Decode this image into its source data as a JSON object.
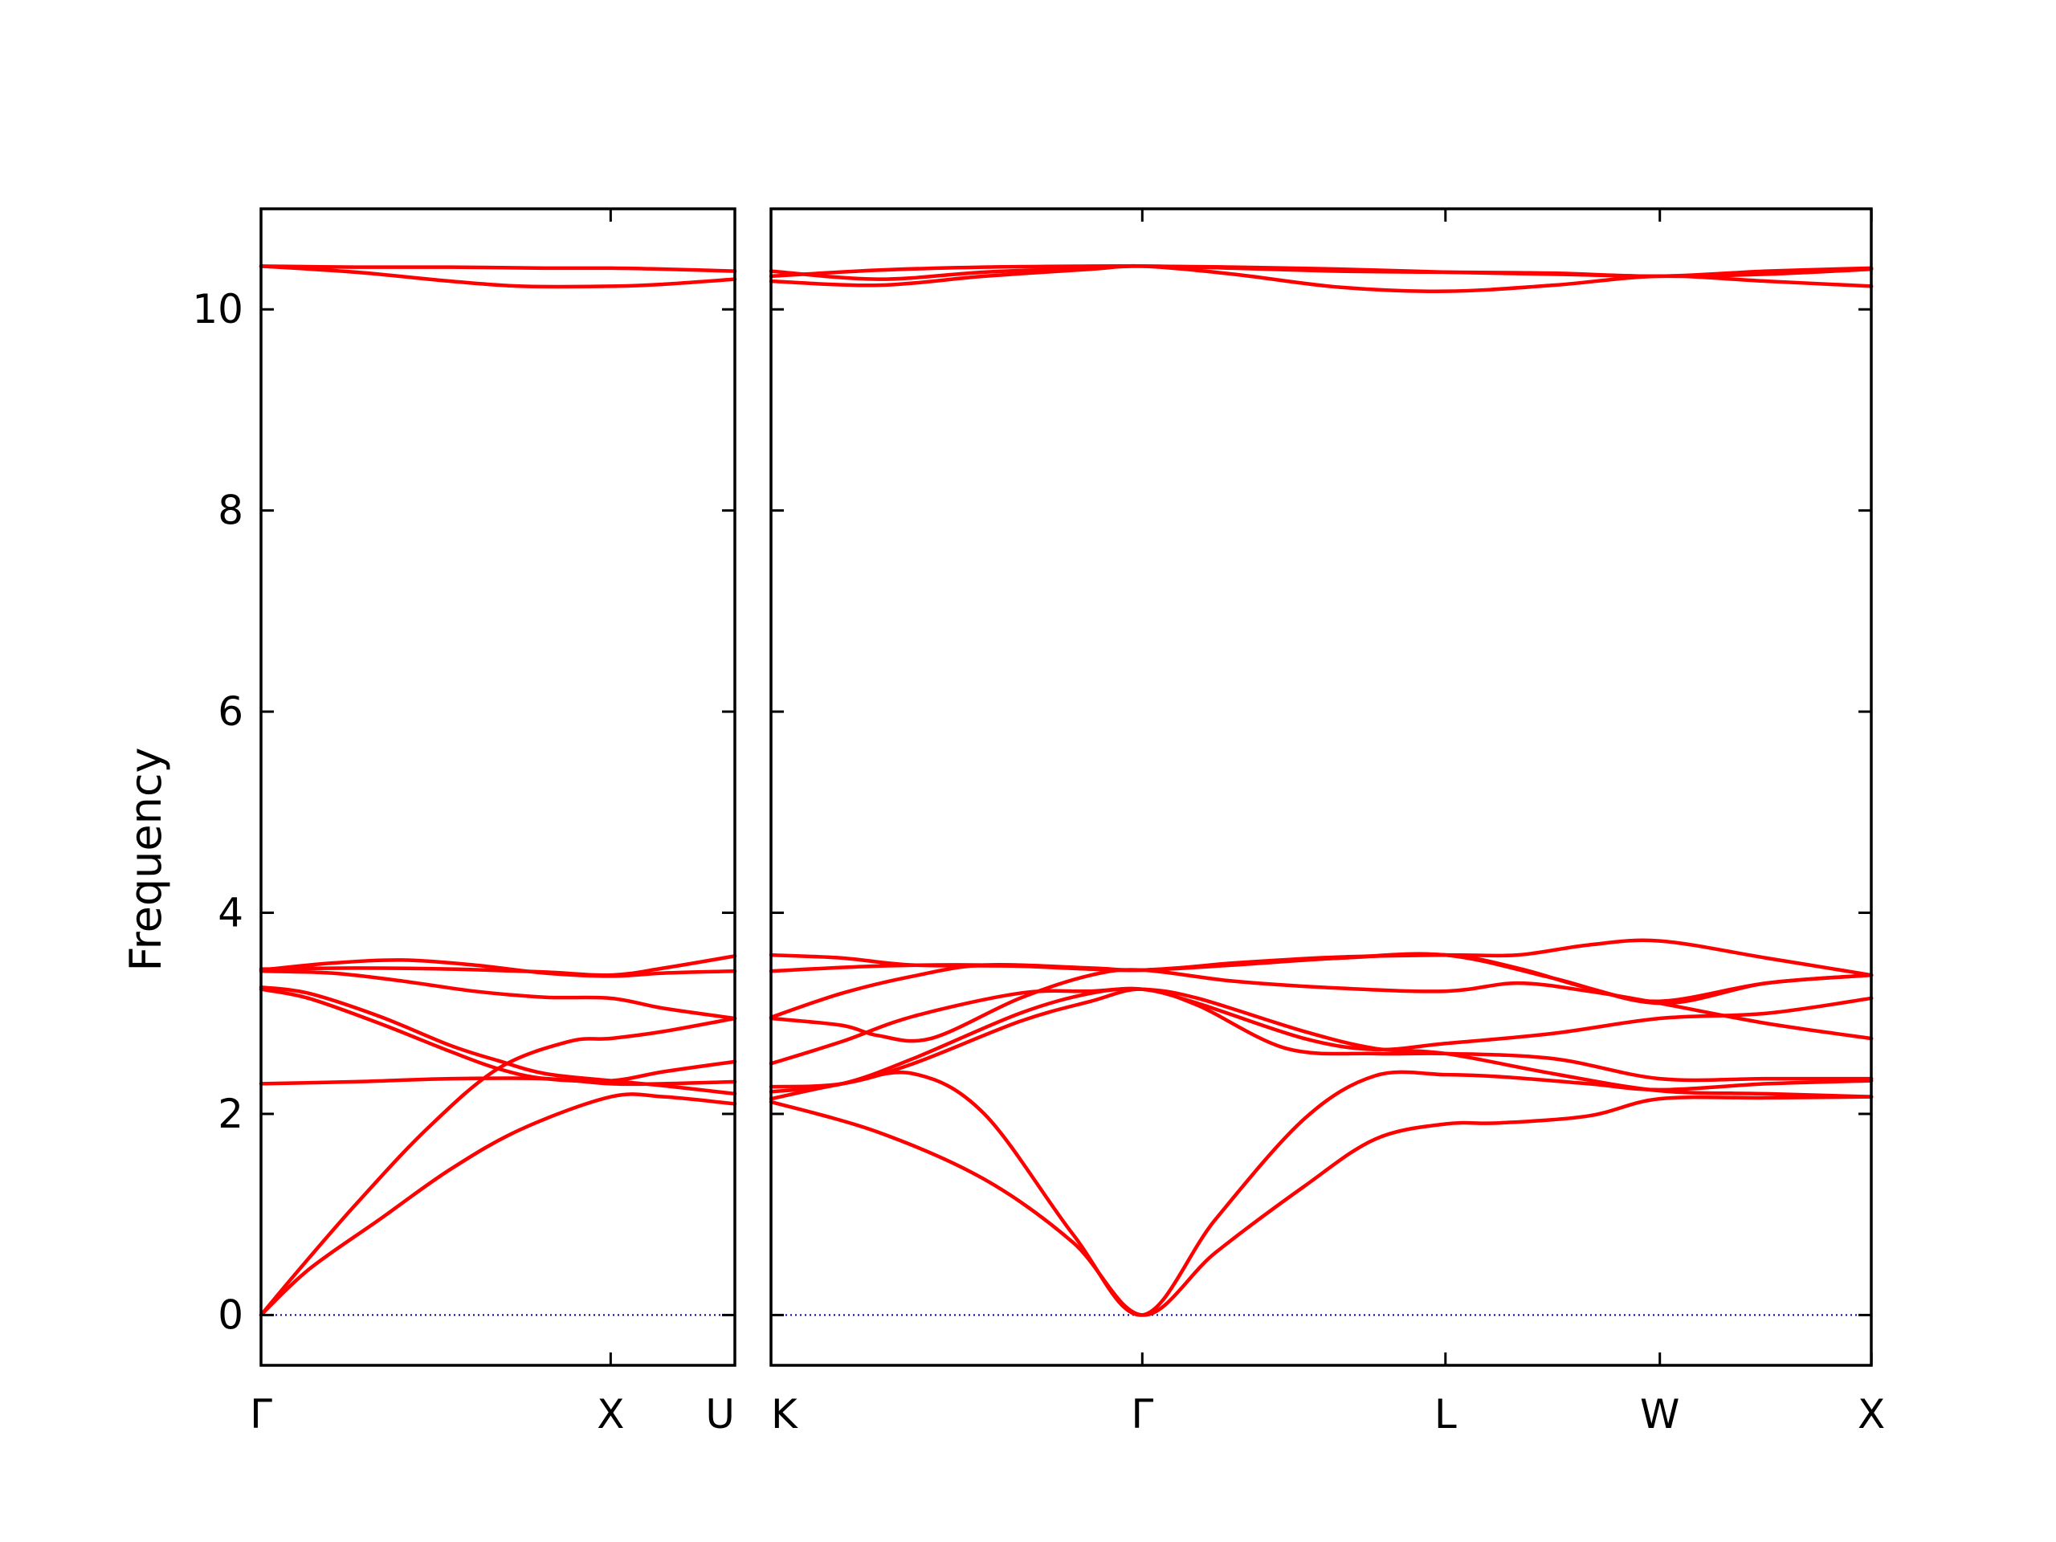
{
  "chart_data": {
    "type": "line",
    "ylabel": "Frequency",
    "ylim": [
      -0.5,
      11.0
    ],
    "yticks": [
      0,
      2,
      4,
      6,
      8,
      10
    ],
    "ytick_labels": [
      "0",
      "2",
      "4",
      "6",
      "8",
      "10"
    ],
    "line_color": "#ff0000",
    "zero_line_color": "#0000aa",
    "grid": false,
    "legend": "none",
    "panels": [
      {
        "xlim": [
          0,
          1.0
        ],
        "xticks": [
          {
            "x": 0.0,
            "label": "Γ"
          },
          {
            "x": 0.7379,
            "label": "X"
          },
          {
            "x": 1.0,
            "label": "U"
          }
        ],
        "series": [
          {
            "x": [
              0,
              0.08,
              0.2,
              0.35,
              0.5,
              0.65,
              0.7379,
              0.85,
              1.0
            ],
            "values": [
              0,
              0.45,
              1.1,
              1.85,
              2.45,
              2.72,
              2.75,
              2.82,
              2.95
            ]
          },
          {
            "x": [
              0,
              0.1,
              0.25,
              0.4,
              0.55,
              0.7379,
              0.85,
              1.0
            ],
            "values": [
              0,
              0.45,
              0.95,
              1.45,
              1.85,
              2.17,
              2.17,
              2.1
            ]
          },
          {
            "x": [
              0,
              0.1,
              0.25,
              0.4,
              0.5,
              0.6,
              0.7379,
              0.85,
              1.0
            ],
            "values": [
              3.24,
              3.15,
              2.9,
              2.62,
              2.45,
              2.35,
              2.33,
              2.42,
              2.52
            ]
          },
          {
            "x": [
              0,
              0.1,
              0.25,
              0.4,
              0.5,
              0.6,
              0.7379,
              0.85,
              1.0
            ],
            "values": [
              3.26,
              3.2,
              2.97,
              2.68,
              2.53,
              2.4,
              2.33,
              2.28,
              2.2
            ]
          },
          {
            "x": [
              0,
              0.15,
              0.3,
              0.45,
              0.6,
              0.7379,
              0.85,
              1.0
            ],
            "values": [
              3.42,
              3.4,
              3.32,
              3.22,
              3.16,
              3.15,
              3.05,
              2.95
            ]
          },
          {
            "x": [
              0,
              0.15,
              0.3,
              0.45,
              0.6,
              0.7379,
              0.85,
              1.0
            ],
            "values": [
              3.43,
              3.5,
              3.53,
              3.48,
              3.4,
              3.37,
              3.4,
              3.42
            ]
          },
          {
            "x": [
              0,
              0.2,
              0.4,
              0.6,
              0.7379,
              0.85,
              1.0
            ],
            "values": [
              3.44,
              3.45,
              3.44,
              3.41,
              3.38,
              3.45,
              3.57
            ]
          },
          {
            "x": [
              0,
              0.2,
              0.4,
              0.6,
              0.7379,
              0.85,
              1.0
            ],
            "values": [
              2.3,
              2.32,
              2.35,
              2.35,
              2.3,
              2.3,
              2.32
            ]
          },
          {
            "x": [
              0,
              0.2,
              0.4,
              0.55,
              0.7379,
              0.85,
              1.0
            ],
            "values": [
              10.43,
              10.37,
              10.28,
              10.23,
              10.23,
              10.25,
              10.3
            ]
          },
          {
            "x": [
              0,
              0.2,
              0.4,
              0.6,
              0.7379,
              0.85,
              1.0
            ],
            "values": [
              10.43,
              10.42,
              10.42,
              10.41,
              10.41,
              10.4,
              10.38
            ]
          }
        ]
      },
      {
        "xlim": [
          0,
          3.095
        ],
        "xticks": [
          {
            "x": 0.0,
            "label": "K"
          },
          {
            "x": 1.0444,
            "label": "Γ"
          },
          {
            "x": 1.8972,
            "label": "L"
          },
          {
            "x": 2.5002,
            "label": "W"
          },
          {
            "x": 3.0954,
            "label": "X"
          }
        ],
        "series": [
          {
            "x": [
              0,
              0.3,
              0.6,
              0.85,
              1.0444,
              1.25,
              1.5,
              1.7,
              1.8972,
              2.05,
              2.3,
              2.5002,
              2.8,
              3.0954
            ],
            "values": [
              2.12,
              1.82,
              1.35,
              0.72,
              0,
              0.62,
              1.28,
              1.75,
              1.9,
              1.91,
              1.98,
              2.15,
              2.16,
              2.17
            ]
          },
          {
            "x": [
              0,
              0.2,
              0.4,
              0.6,
              0.85,
              1.0444,
              1.25,
              1.5,
              1.7,
              1.8972,
              2.05,
              2.3,
              2.5002,
              2.8,
              3.0954
            ],
            "values": [
              2.15,
              2.3,
              2.4,
              2.0,
              0.8,
              0,
              0.95,
              1.95,
              2.38,
              2.39,
              2.37,
              2.3,
              2.24,
              2.3,
              2.33
            ]
          },
          {
            "x": [
              0,
              0.2,
              0.4,
              0.7,
              0.9,
              1.0444,
              1.2,
              1.45,
              1.7,
              1.8972,
              2.2,
              2.5002,
              2.8,
              3.0954
            ],
            "values": [
              2.27,
              2.3,
              2.5,
              2.92,
              3.12,
              3.24,
              3.08,
              2.65,
              2.6,
              2.6,
              2.55,
              2.35,
              2.35,
              2.35
            ]
          },
          {
            "x": [
              0,
              0.2,
              0.4,
              0.7,
              0.9,
              1.0444,
              1.2,
              1.5,
              1.7,
              1.8972,
              2.2,
              2.5002,
              2.8,
              3.0954
            ],
            "values": [
              2.22,
              2.3,
              2.55,
              3.0,
              3.2,
              3.24,
              3.15,
              2.82,
              2.65,
              2.6,
              2.4,
              2.23,
              2.2,
              2.17
            ]
          },
          {
            "x": [
              0,
              0.2,
              0.4,
              0.7,
              0.9,
              1.0444,
              1.2,
              1.5,
              1.7,
              1.8972,
              2.2,
              2.5002,
              2.8,
              3.0954
            ],
            "values": [
              2.5,
              2.72,
              2.97,
              3.2,
              3.22,
              3.24,
              3.1,
              2.75,
              2.64,
              2.7,
              2.8,
              2.95,
              3.0,
              3.15
            ]
          },
          {
            "x": [
              0,
              0.2,
              0.3,
              0.45,
              0.7,
              0.9,
              1.0444,
              1.3,
              1.6,
              1.8972,
              2.1,
              2.3,
              2.5002,
              2.8,
              3.0954
            ],
            "values": [
              2.95,
              2.88,
              2.78,
              2.75,
              3.15,
              3.38,
              3.43,
              3.32,
              3.25,
              3.22,
              3.3,
              3.22,
              3.1,
              2.9,
              2.75
            ]
          },
          {
            "x": [
              0,
              0.2,
              0.4,
              0.6,
              0.9,
              1.0444,
              1.3,
              1.6,
              1.8972,
              2.1,
              2.3,
              2.5002,
              2.8,
              3.0954
            ],
            "values": [
              2.96,
              3.2,
              3.37,
              3.48,
              3.45,
              3.43,
              3.48,
              3.55,
              3.58,
              3.45,
              3.25,
              3.12,
              3.3,
              3.38
            ]
          },
          {
            "x": [
              0,
              0.2,
              0.4,
              0.7,
              1.0444,
              1.3,
              1.6,
              1.8972,
              2.1,
              2.3,
              2.5002,
              2.8,
              3.0954
            ],
            "values": [
              3.58,
              3.55,
              3.48,
              3.47,
              3.43,
              3.5,
              3.56,
              3.58,
              3.58,
              3.68,
              3.72,
              3.55,
              3.38
            ]
          },
          {
            "x": [
              0,
              0.3,
              0.6,
              0.9,
              1.0444,
              1.3,
              1.6,
              1.8972,
              2.2,
              2.5002,
              2.8,
              3.0954
            ],
            "values": [
              3.42,
              3.47,
              3.48,
              3.44,
              3.43,
              3.49,
              3.55,
              3.58,
              3.35,
              3.1,
              3.3,
              3.38
            ]
          },
          {
            "x": [
              0,
              0.3,
              0.6,
              0.9,
              1.0444,
              1.3,
              1.6,
              1.8972,
              2.2,
              2.5002,
              2.8,
              3.0954
            ],
            "values": [
              10.28,
              10.24,
              10.33,
              10.4,
              10.43,
              10.35,
              10.22,
              10.18,
              10.24,
              10.33,
              10.28,
              10.23
            ]
          },
          {
            "x": [
              0,
              0.3,
              0.6,
              0.9,
              1.0444,
              1.3,
              1.6,
              1.8972,
              2.2,
              2.5002,
              2.8,
              3.0954
            ],
            "values": [
              10.38,
              10.3,
              10.37,
              10.41,
              10.43,
              10.41,
              10.38,
              10.37,
              10.36,
              10.33,
              10.38,
              10.41
            ]
          },
          {
            "x": [
              0,
              0.3,
              0.6,
              0.9,
              1.0444,
              1.3,
              1.6,
              1.8972,
              2.2,
              2.5002,
              2.8,
              3.0954
            ],
            "values": [
              10.33,
              10.39,
              10.42,
              10.43,
              10.43,
              10.42,
              10.4,
              10.37,
              10.35,
              10.33,
              10.35,
              10.4
            ]
          }
        ]
      }
    ]
  }
}
